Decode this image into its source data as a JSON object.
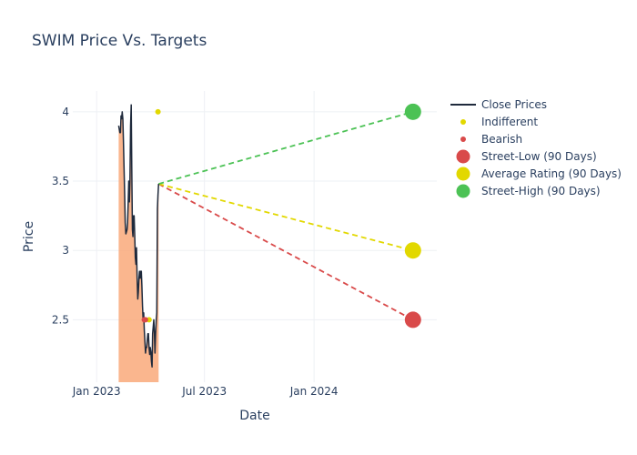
{
  "chart_data": {
    "type": "line",
    "title": "SWIM Price Vs. Targets",
    "xlabel": "Date",
    "ylabel": "Price",
    "x_range": [
      "2022-11-22",
      "2024-07-25"
    ],
    "ylim": [
      2.05,
      4.15
    ],
    "x_ticks": [
      {
        "date": "2023-01-01",
        "label": "Jan 2023"
      },
      {
        "date": "2023-07-01",
        "label": "Jul 2023"
      },
      {
        "date": "2024-01-01",
        "label": "Jan 2024"
      }
    ],
    "y_ticks": [
      {
        "value": 2.5,
        "label": "2.5"
      },
      {
        "value": 3,
        "label": "3"
      },
      {
        "value": 3.5,
        "label": "3.5"
      },
      {
        "value": 4,
        "label": "4"
      }
    ],
    "grid": true,
    "legend_position": "right",
    "colors": {
      "close": "#1f2a3c",
      "fill": "#f9a97a",
      "indifferent": "#e2d800",
      "bearish": "#d94a4a",
      "low": "#d94a4a",
      "average": "#e2d800",
      "high": "#4cc255",
      "grid": "#eef0f4",
      "text": "#2a3f5f"
    },
    "series": [
      {
        "name": "Close Prices",
        "kind": "line",
        "points": [
          [
            "2023-02-07",
            3.9
          ],
          [
            "2023-02-09",
            3.85
          ],
          [
            "2023-02-10",
            3.85
          ],
          [
            "2023-02-11",
            3.97
          ],
          [
            "2023-02-12",
            3.95
          ],
          [
            "2023-02-13",
            4.0
          ],
          [
            "2023-02-14",
            3.95
          ],
          [
            "2023-02-15",
            3.8
          ],
          [
            "2023-02-16",
            3.6
          ],
          [
            "2023-02-17",
            3.4
          ],
          [
            "2023-02-18",
            3.2
          ],
          [
            "2023-02-19",
            3.12
          ],
          [
            "2023-02-21",
            3.15
          ],
          [
            "2023-02-22",
            3.2
          ],
          [
            "2023-02-23",
            3.35
          ],
          [
            "2023-02-24",
            3.5
          ],
          [
            "2023-02-25",
            3.35
          ],
          [
            "2023-02-26",
            3.5
          ],
          [
            "2023-02-27",
            3.9
          ],
          [
            "2023-02-28",
            4.05
          ],
          [
            "2023-03-01",
            3.6
          ],
          [
            "2023-03-02",
            3.15
          ],
          [
            "2023-03-03",
            3.1
          ],
          [
            "2023-03-04",
            3.25
          ],
          [
            "2023-03-05",
            3.25
          ],
          [
            "2023-03-06",
            3.1
          ],
          [
            "2023-03-07",
            2.95
          ],
          [
            "2023-03-08",
            2.9
          ],
          [
            "2023-03-09",
            3.02
          ],
          [
            "2023-03-10",
            2.8
          ],
          [
            "2023-03-11",
            2.65
          ],
          [
            "2023-03-12",
            2.7
          ],
          [
            "2023-03-13",
            2.8
          ],
          [
            "2023-03-14",
            2.85
          ],
          [
            "2023-03-15",
            2.8
          ],
          [
            "2023-03-16",
            2.85
          ],
          [
            "2023-03-17",
            2.85
          ],
          [
            "2023-03-18",
            2.75
          ],
          [
            "2023-03-19",
            2.6
          ],
          [
            "2023-03-20",
            2.5
          ],
          [
            "2023-03-21",
            2.55
          ],
          [
            "2023-03-22",
            2.42
          ],
          [
            "2023-03-23",
            2.35
          ],
          [
            "2023-03-24",
            2.26
          ],
          [
            "2023-03-25",
            2.3
          ],
          [
            "2023-03-26",
            2.3
          ],
          [
            "2023-03-27",
            2.35
          ],
          [
            "2023-03-28",
            2.4
          ],
          [
            "2023-03-29",
            2.4
          ],
          [
            "2023-03-30",
            2.3
          ],
          [
            "2023-03-31",
            2.25
          ],
          [
            "2023-04-01",
            2.3
          ],
          [
            "2023-04-02",
            2.27
          ],
          [
            "2023-04-03",
            2.2
          ],
          [
            "2023-04-04",
            2.16
          ],
          [
            "2023-04-05",
            2.4
          ],
          [
            "2023-04-06",
            2.45
          ],
          [
            "2023-04-07",
            2.5
          ],
          [
            "2023-04-08",
            2.4
          ],
          [
            "2023-04-09",
            2.26
          ],
          [
            "2023-04-10",
            2.4
          ],
          [
            "2023-04-11",
            2.5
          ],
          [
            "2023-04-12",
            2.55
          ],
          [
            "2023-04-13",
            3.3
          ],
          [
            "2023-04-14",
            3.4
          ],
          [
            "2023-04-15",
            3.48
          ]
        ]
      },
      {
        "name": "Indifferent",
        "kind": "markers",
        "points": [
          [
            "2023-04-14",
            4.0
          ],
          [
            "2023-03-30",
            2.5
          ]
        ]
      },
      {
        "name": "Bearish",
        "kind": "markers",
        "points": [
          [
            "2023-03-22",
            2.5
          ],
          [
            "2023-03-24",
            2.5
          ]
        ]
      },
      {
        "name": "Street-Low (90 Days)",
        "kind": "target",
        "from": [
          "2023-04-15",
          3.48
        ],
        "to": [
          "2024-06-15",
          2.5
        ]
      },
      {
        "name": "Average Rating (90 Days)",
        "kind": "target",
        "from": [
          "2023-04-15",
          3.48
        ],
        "to": [
          "2024-06-15",
          3.0
        ]
      },
      {
        "name": "Street-High (90 Days)",
        "kind": "target",
        "from": [
          "2023-04-15",
          3.48
        ],
        "to": [
          "2024-06-15",
          4.0
        ]
      }
    ]
  }
}
